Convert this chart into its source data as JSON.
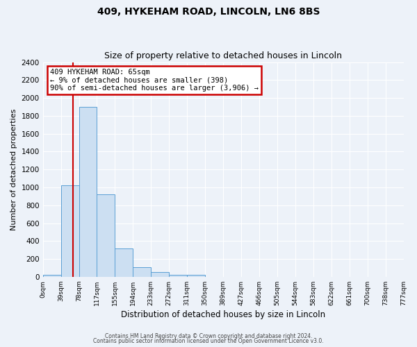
{
  "title": "409, HYKEHAM ROAD, LINCOLN, LN6 8BS",
  "subtitle": "Size of property relative to detached houses in Lincoln",
  "xlabel": "Distribution of detached houses by size in Lincoln",
  "ylabel": "Number of detached properties",
  "bin_labels": [
    "0sqm",
    "39sqm",
    "78sqm",
    "117sqm",
    "155sqm",
    "194sqm",
    "233sqm",
    "272sqm",
    "311sqm",
    "350sqm",
    "389sqm",
    "427sqm",
    "466sqm",
    "505sqm",
    "544sqm",
    "583sqm",
    "622sqm",
    "661sqm",
    "700sqm",
    "738sqm",
    "777sqm"
  ],
  "bar_values": [
    20,
    1020,
    1900,
    920,
    320,
    105,
    50,
    25,
    20,
    0,
    0,
    0,
    0,
    0,
    0,
    0,
    0,
    0,
    0,
    0
  ],
  "bar_color": "#ccdff2",
  "bar_edge_color": "#5a9fd4",
  "red_line_x": 1.667,
  "annotation_title": "409 HYKEHAM ROAD: 65sqm",
  "annotation_line1": "← 9% of detached houses are smaller (398)",
  "annotation_line2": "90% of semi-detached houses are larger (3,906) →",
  "annotation_box_color": "#ffffff",
  "annotation_box_edge": "#cc0000",
  "red_line_color": "#cc0000",
  "ylim": [
    0,
    2400
  ],
  "yticks": [
    0,
    200,
    400,
    600,
    800,
    1000,
    1200,
    1400,
    1600,
    1800,
    2000,
    2200,
    2400
  ],
  "background_color": "#edf2f9",
  "grid_color": "#ffffff",
  "footer1": "Contains HM Land Registry data © Crown copyright and database right 2024.",
  "footer2": "Contains public sector information licensed under the Open Government Licence v3.0."
}
